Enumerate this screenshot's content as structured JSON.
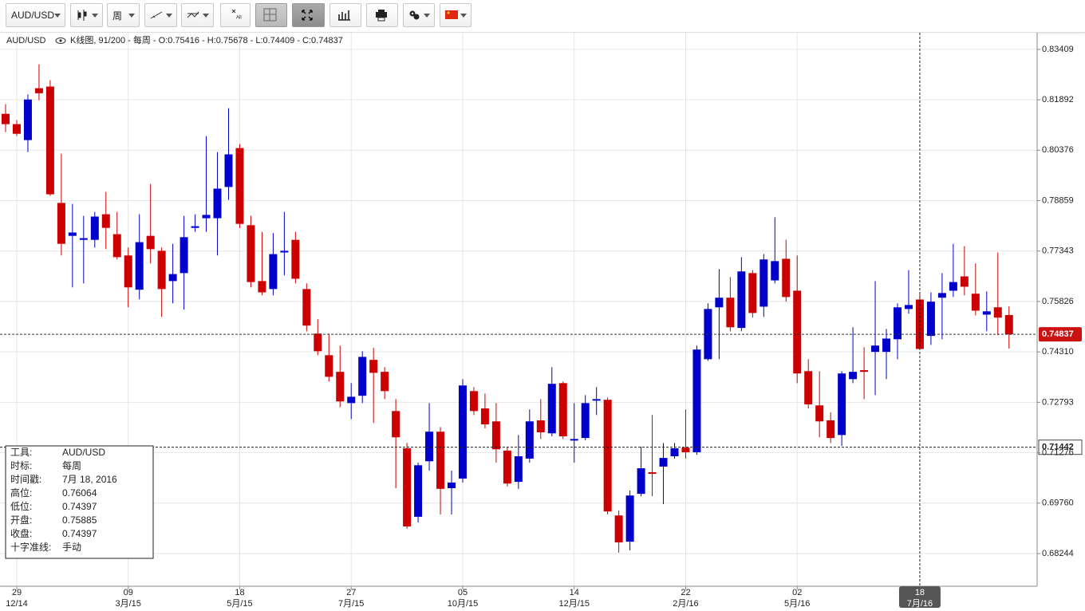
{
  "toolbar": {
    "symbol": "AUD/USD",
    "period": "周",
    "all_icon": "All"
  },
  "chart_data": {
    "type": "candlestick",
    "symbol": "AUD/USD",
    "legend_text": "K线图, 91/200 - 每周 - O:0.75416 - H:0.75678 - L:0.74409 - C:0.74837",
    "up_color": "#0000cc",
    "down_color": "#cc0000",
    "grid": true,
    "ylim": [
      0.6726,
      0.8391
    ],
    "yticks": [
      0.83409,
      0.81892,
      0.80376,
      0.78859,
      0.77343,
      0.75826,
      {
        "value": 0.7431,
        "label": "0.74310"
      },
      0.72793,
      0.71276,
      {
        "value": 0.6976,
        "label": "0.69760"
      },
      0.68244
    ],
    "categories": [
      null,
      "29",
      null,
      null,
      null,
      null,
      null,
      null,
      null,
      null,
      null,
      "09",
      null,
      null,
      null,
      null,
      null,
      null,
      null,
      null,
      null,
      "18",
      null,
      null,
      null,
      null,
      null,
      null,
      null,
      null,
      null,
      "27",
      null,
      null,
      null,
      null,
      null,
      null,
      null,
      null,
      null,
      "05",
      null,
      null,
      null,
      null,
      null,
      null,
      null,
      null,
      null,
      "14",
      null,
      null,
      null,
      null,
      null,
      null,
      null,
      null,
      null,
      "22",
      null,
      null,
      null,
      null,
      null,
      null,
      null,
      null,
      null,
      "02",
      null,
      null,
      null,
      null,
      null,
      null,
      null,
      null,
      null,
      null,
      "18",
      null,
      null,
      null,
      null,
      null,
      null,
      null,
      null
    ],
    "category_sublabels": [
      null,
      "12/14",
      null,
      null,
      null,
      null,
      null,
      null,
      null,
      null,
      null,
      "3月/15",
      null,
      null,
      null,
      null,
      null,
      null,
      null,
      null,
      null,
      "5月/15",
      null,
      null,
      null,
      null,
      null,
      null,
      null,
      null,
      null,
      "7月/15",
      null,
      null,
      null,
      null,
      null,
      null,
      null,
      null,
      null,
      "10月/15",
      null,
      null,
      null,
      null,
      null,
      null,
      null,
      null,
      null,
      "12月/15",
      null,
      null,
      null,
      null,
      null,
      null,
      null,
      null,
      null,
      "2月/16",
      null,
      null,
      null,
      null,
      null,
      null,
      null,
      null,
      null,
      "5月/16",
      null,
      null,
      null,
      null,
      null,
      null,
      null,
      null,
      null,
      null,
      "7月/16",
      null,
      null,
      null,
      null,
      null,
      null,
      null,
      null
    ],
    "open": [
      0.8147,
      0.8116,
      0.8068,
      0.8224,
      0.8229,
      0.7879,
      0.778,
      0.7768,
      0.7768,
      0.7845,
      0.7785,
      0.7721,
      0.7618,
      0.778,
      0.7735,
      0.7644,
      0.7668,
      0.7804,
      0.7833,
      0.7833,
      0.7927,
      0.8044,
      0.7812,
      0.7644,
      0.762,
      0.773,
      0.7768,
      0.762,
      0.7486,
      0.7421,
      0.7371,
      0.7277,
      0.7299,
      0.7407,
      0.7371,
      0.7253,
      0.7141,
      0.6935,
      0.7102,
      0.7191,
      0.7021,
      0.705,
      0.7313,
      0.7261,
      0.7222,
      0.7134,
      0.704,
      0.711,
      0.7225,
      0.7186,
      0.7337,
      0.7167,
      0.7172,
      0.7287,
      0.7287,
      0.6939,
      0.686,
      0.7004,
      0.7069,
      0.7086,
      0.7117,
      0.7143,
      0.7129,
      0.7409,
      0.7565,
      0.7594,
      0.7503,
      0.7668,
      0.7567,
      0.7646,
      0.7711,
      0.7615,
      0.7373,
      0.727,
      0.7225,
      0.7181,
      0.7349,
      0.7376,
      0.7431,
      0.7431,
      0.7469,
      0.756,
      0.75885,
      0.7479,
      0.7594,
      0.7615,
      0.7658,
      0.7606,
      0.7543,
      0.7565,
      0.75416
    ],
    "high": [
      0.8176,
      0.8128,
      0.8205,
      0.8296,
      0.8248,
      0.8027,
      0.7876,
      0.784,
      0.7852,
      0.7912,
      0.7852,
      0.7745,
      0.7845,
      0.7936,
      0.7745,
      0.7756,
      0.784,
      0.7845,
      0.808,
      0.8032,
      0.8164,
      0.8056,
      0.784,
      0.7792,
      0.7788,
      0.7852,
      0.7792,
      0.7637,
      0.7529,
      0.7486,
      0.745,
      0.7337,
      0.7433,
      0.7443,
      0.7385,
      0.7289,
      0.7157,
      0.7098,
      0.7277,
      0.7205,
      0.7074,
      0.7349,
      0.7325,
      0.7306,
      0.7277,
      0.7146,
      0.7181,
      0.7258,
      0.7289,
      0.7385,
      0.7342,
      0.7277,
      0.7301,
      0.7325,
      0.7294,
      0.6954,
      0.7014,
      0.7146,
      0.7241,
      0.7157,
      0.7157,
      0.7258,
      0.745,
      0.7577,
      0.768,
      0.7656,
      0.7716,
      0.7677,
      0.7725,
      0.7836,
      0.7768,
      0.7721,
      0.7409,
      0.7373,
      0.7249,
      0.7373,
      0.7505,
      0.7445,
      0.7644,
      0.75,
      0.7577,
      0.7677,
      0.76064,
      0.761,
      0.7668,
      0.7756,
      0.7749,
      0.7697,
      0.7613,
      0.773,
      0.75678
    ],
    "low": [
      0.8092,
      0.808,
      0.8032,
      0.8188,
      0.79,
      0.7721,
      0.7625,
      0.7637,
      0.7745,
      0.774,
      0.7709,
      0.7565,
      0.7589,
      0.7697,
      0.7536,
      0.7577,
      0.7558,
      0.7792,
      0.7792,
      0.7721,
      0.7888,
      0.7804,
      0.7625,
      0.7601,
      0.7601,
      0.7661,
      0.7637,
      0.7493,
      0.7421,
      0.7342,
      0.7265,
      0.7229,
      0.7277,
      0.7217,
      0.7289,
      0.7021,
      0.6899,
      0.6918,
      0.7074,
      0.6942,
      0.6942,
      0.7038,
      0.7241,
      0.7201,
      0.7098,
      0.7026,
      0.7019,
      0.7098,
      0.7169,
      0.7177,
      0.7169,
      0.7098,
      0.7165,
      0.7241,
      0.6942,
      0.6827,
      0.6834,
      0.6997,
      0.6997,
      0.6973,
      0.711,
      0.711,
      0.7122,
      0.7404,
      0.7409,
      0.7493,
      0.7493,
      0.7534,
      0.7536,
      0.7637,
      0.7582,
      0.7337,
      0.7261,
      0.7174,
      0.7157,
      0.7148,
      0.7337,
      0.7289,
      0.7301,
      0.7349,
      0.7409,
      0.7546,
      0.74397,
      0.7452,
      0.7469,
      0.7596,
      0.7601,
      0.7541,
      0.7493,
      0.7481,
      0.74409
    ],
    "close": [
      0.8116,
      0.8087,
      0.819,
      0.8209,
      0.7905,
      0.7756,
      0.779,
      0.7773,
      0.7838,
      0.7804,
      0.7716,
      0.7625,
      0.7761,
      0.774,
      0.762,
      0.7665,
      0.7776,
      0.7809,
      0.7843,
      0.7922,
      0.8025,
      0.7816,
      0.7641,
      0.761,
      0.7725,
      0.7735,
      0.7651,
      0.751,
      0.7433,
      0.7356,
      0.7282,
      0.7296,
      0.7416,
      0.7368,
      0.7313,
      0.7174,
      0.6906,
      0.709,
      0.7191,
      0.7019,
      0.7038,
      0.733,
      0.7253,
      0.7213,
      0.7138,
      0.7035,
      0.7117,
      0.7222,
      0.7189,
      0.7335,
      0.7177,
      0.7169,
      0.7277,
      0.7289,
      0.6951,
      0.6858,
      0.6999,
      0.7081,
      0.7066,
      0.7112,
      0.7141,
      0.7129,
      0.7438,
      0.756,
      0.7594,
      0.7505,
      0.7673,
      0.7548,
      0.7709,
      0.7704,
      0.7596,
      0.7366,
      0.7273,
      0.7222,
      0.7172,
      0.7366,
      0.7371,
      0.7371,
      0.745,
      0.7471,
      0.7565,
      0.7572,
      0.74397,
      0.7582,
      0.7608,
      0.7641,
      0.7627,
      0.7555,
      0.7553,
      0.7534,
      0.74837
    ],
    "last_price": 0.74837,
    "crosshair": {
      "price": 0.71442,
      "x_index": 82
    }
  },
  "info_panel": {
    "rows": [
      [
        "工具:",
        "AUD/USD"
      ],
      [
        "时标:",
        "每周"
      ],
      [
        "时间戳:",
        "7月 18, 2016"
      ],
      [
        "高位:",
        "0.76064"
      ],
      [
        "低位:",
        "0.74397"
      ],
      [
        "开盘:",
        "0.75885"
      ],
      [
        "收盘:",
        "0.74397"
      ],
      [
        "十字准线:",
        "手动"
      ]
    ]
  }
}
